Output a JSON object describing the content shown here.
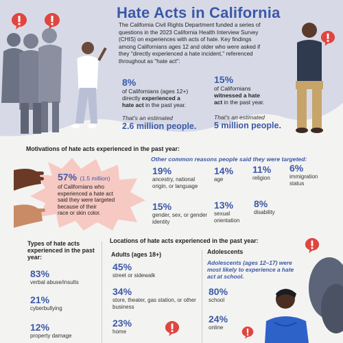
{
  "header": {
    "title": "Hate Acts in California",
    "intro": "The California Civil Rights Department funded a series of questions in the 2023 California Health Interview Survey (CHIS) on experiences with acts of hate. Key findings among Californians ages 12 and older who were asked if they \"directly experienced a hate incident,\" referenced throughout as \"hate act\":"
  },
  "stats": {
    "experienced": {
      "pct": "8%",
      "line1": "of Californians (ages 12+)",
      "line2": "directly ",
      "line2_bold": "experienced a",
      "line3_bold": "hate act",
      "line3": " in the past year.",
      "estimate_label": "That's an estimated",
      "estimate": "2.6 million people."
    },
    "witnessed": {
      "pct": "15%",
      "line1": "of Californians",
      "line2_bold": "witnessed a hate",
      "line3_bold": "act",
      "line3": " in the past year.",
      "estimate_label": "That's an estimated",
      "estimate": "5 million people."
    }
  },
  "motivations": {
    "title": "Motivations of hate acts experienced in the past year:",
    "main_pct": "57%",
    "main_pct_extra": "(1.5 million)",
    "main_text": [
      "of Californians who",
      "experienced a hate act",
      "said they were targeted",
      "because of their",
      "race or skin color."
    ],
    "other_title": "Other common reasons people said they were targeted:",
    "reasons": [
      {
        "pct": "19%",
        "label": "ancestry, national origin, or language"
      },
      {
        "pct": "14%",
        "label": "age"
      },
      {
        "pct": "11%",
        "label": "religion"
      },
      {
        "pct": "6%",
        "label": "immigration status"
      },
      {
        "pct": "15%",
        "label": "gender, sex, or gender identity"
      },
      {
        "pct": "13%",
        "label": "sexual orientation"
      },
      {
        "pct": "8%",
        "label": "disability"
      }
    ]
  },
  "types": {
    "title": "Types of hate acts experienced in the past year:",
    "items": [
      {
        "pct": "83%",
        "label": "verbal abuse/insults"
      },
      {
        "pct": "21%",
        "label": "cyberbullying"
      },
      {
        "pct": "12%",
        "label": "property damage"
      }
    ]
  },
  "locations": {
    "title": "Locations of hate acts experienced in the past year:",
    "adults": {
      "title": "Adults (ages 18+)",
      "items": [
        {
          "pct": "45%",
          "label": "street or sidewalk"
        },
        {
          "pct": "34%",
          "label": "store, theater, gas station, or other business"
        },
        {
          "pct": "23%",
          "label": "home"
        }
      ]
    },
    "adolescents": {
      "title": "Adolescents",
      "note": "Adolescents (ages 12–17) were most likely to experience a hate act at school.",
      "items": [
        {
          "pct": "80%",
          "label": "school"
        },
        {
          "pct": "24%",
          "label": "online"
        }
      ]
    }
  },
  "colors": {
    "accent": "#3b58a8",
    "wave": "#d7dae6",
    "alert": "#e0453f",
    "burst": "#f7c9c3"
  }
}
